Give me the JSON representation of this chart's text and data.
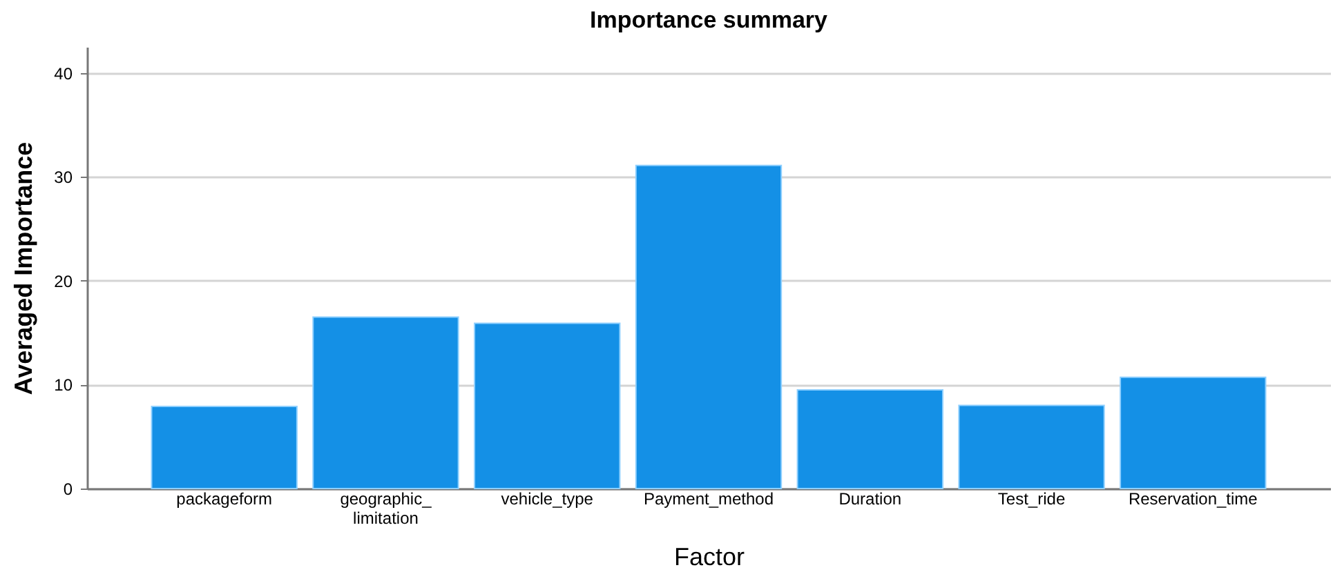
{
  "chart_data": {
    "type": "bar",
    "title": "Importance summary",
    "xlabel": "Factor",
    "ylabel": "Averaged Importance",
    "categories": [
      "packageform",
      "geographic_limitation",
      "vehicle_type",
      "Payment_method",
      "Duration",
      "Test_ride",
      "Reservation_time"
    ],
    "values": [
      7.9,
      16.5,
      15.9,
      31.1,
      9.5,
      8.0,
      10.7
    ],
    "color": "#1490e6",
    "ylim": [
      0,
      42.5
    ],
    "yticks": [
      0,
      10,
      20,
      30,
      40
    ],
    "grid": "y"
  }
}
